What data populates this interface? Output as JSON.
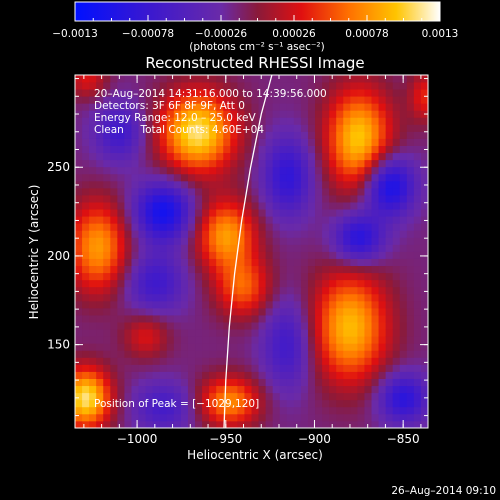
{
  "chart_data": {
    "type": "heatmap",
    "title": "Reconstructed RHESSI Image",
    "xlabel": "Heliocentric X (arcsec)",
    "ylabel": "Heliocentric Y (arcsec)",
    "xlim": [
      -1035,
      -836
    ],
    "ylim": [
      103,
      302
    ],
    "x_ticks": [
      -1000,
      -950,
      -900,
      -850
    ],
    "x_tick_labels": [
      "−1000",
      "−950",
      "−900",
      "−850"
    ],
    "y_ticks": [
      150,
      200,
      250
    ],
    "y_tick_labels": [
      "150",
      "200",
      "250"
    ],
    "colorbar": {
      "range": [
        -0.0013,
        0.0013
      ],
      "ticks": [
        -0.0013,
        -0.00078,
        -0.00026,
        0.00026,
        0.00078,
        0.0013
      ],
      "tick_labels": [
        "−0.0013",
        "−0.00078",
        "−0.00026",
        "0.00026",
        "0.00078",
        "0.0013"
      ],
      "unit_label": "(photons cm⁻² s⁻¹ asec⁻²)"
    },
    "annotations": [
      "20–Aug–2014 14:31:16.000 to 14:39:56.000",
      "Detectors: 3F 6F 8F 9F, Att 0",
      "Energy Range: 12.0 – 25.0 keV",
      "Clean     Total Counts: 4.60E+04"
    ],
    "peak_label": "Position of Peak = [−1029,120]",
    "peak": [
      -1029,
      120
    ],
    "sources": [
      {
        "x": -966,
        "y": 270,
        "sx": 15,
        "sy": 16,
        "amp": 1.0
      },
      {
        "x": -875,
        "y": 266,
        "sx": 13,
        "sy": 20,
        "amp": 0.9
      },
      {
        "x": -1022,
        "y": 205,
        "sx": 12,
        "sy": 18,
        "amp": 0.75
      },
      {
        "x": -950,
        "y": 212,
        "sx": 12,
        "sy": 14,
        "amp": 0.75
      },
      {
        "x": -940,
        "y": 182,
        "sx": 11,
        "sy": 12,
        "amp": 0.55
      },
      {
        "x": -880,
        "y": 160,
        "sx": 15,
        "sy": 22,
        "amp": 0.85
      },
      {
        "x": -1029,
        "y": 120,
        "sx": 10,
        "sy": 12,
        "amp": 1.0
      },
      {
        "x": -948,
        "y": 118,
        "sx": 12,
        "sy": 10,
        "amp": 0.7
      },
      {
        "x": -995,
        "y": 155,
        "sx": 9,
        "sy": 9,
        "amp": 0.35
      },
      {
        "x": -1028,
        "y": 300,
        "sx": 8,
        "sy": 8,
        "amp": 0.35
      },
      {
        "x": -838,
        "y": 290,
        "sx": 6,
        "sy": 10,
        "amp": 0.4
      },
      {
        "x": -985,
        "y": 225,
        "sx": 12,
        "sy": 12,
        "amp": -0.75
      },
      {
        "x": -915,
        "y": 245,
        "sx": 10,
        "sy": 16,
        "amp": -0.55
      },
      {
        "x": -858,
        "y": 240,
        "sx": 10,
        "sy": 12,
        "amp": -0.8
      },
      {
        "x": -875,
        "y": 210,
        "sx": 10,
        "sy": 10,
        "amp": -0.65
      },
      {
        "x": -990,
        "y": 185,
        "sx": 12,
        "sy": 12,
        "amp": -0.45
      },
      {
        "x": -1010,
        "y": 270,
        "sx": 10,
        "sy": 12,
        "amp": -0.45
      },
      {
        "x": -915,
        "y": 150,
        "sx": 10,
        "sy": 18,
        "amp": -0.45
      },
      {
        "x": -850,
        "y": 120,
        "sx": 10,
        "sy": 10,
        "amp": -0.6
      },
      {
        "x": -985,
        "y": 115,
        "sx": 12,
        "sy": 10,
        "amp": -0.4
      }
    ],
    "limb_curve": [
      [
        -924,
        302
      ],
      [
        -930,
        280
      ],
      [
        -936,
        250
      ],
      [
        -941,
        220
      ],
      [
        -945,
        190
      ],
      [
        -948,
        160
      ],
      [
        -950,
        130
      ],
      [
        -951,
        103
      ]
    ]
  },
  "footer": {
    "date_stamp": "26–Aug–2014 09:10"
  }
}
